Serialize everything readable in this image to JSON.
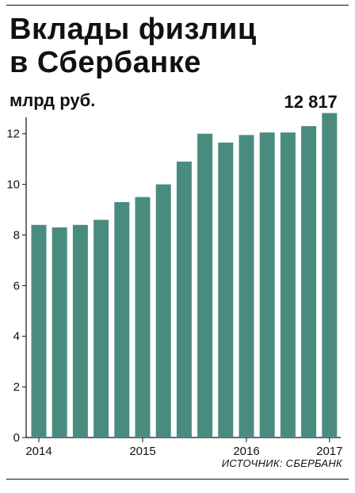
{
  "title": "Вклады физлиц\nв Сбербанке",
  "unit": "млрд руб.",
  "source": "ИСТОЧНИК: СБЕРБАНК",
  "chart_data": {
    "type": "bar",
    "title": "Вклады физлиц в Сбербанке",
    "ylabel": "млрд руб.",
    "xlabel": "",
    "ylim": [
      0,
      13
    ],
    "yticks": [
      0,
      2,
      4,
      6,
      8,
      10,
      12
    ],
    "grid": false,
    "color": "#4a8b80",
    "x_tick_labels": [
      "2014",
      "2015",
      "2016",
      "2017"
    ],
    "x_tick_positions": [
      0,
      5,
      10,
      14
    ],
    "values": [
      8.4,
      8.3,
      8.4,
      8.6,
      9.3,
      9.5,
      10.0,
      10.9,
      12.0,
      11.65,
      11.95,
      12.05,
      12.05,
      12.3,
      12.817
    ],
    "annotation": {
      "bar_index": 14,
      "text": "12 817"
    }
  }
}
